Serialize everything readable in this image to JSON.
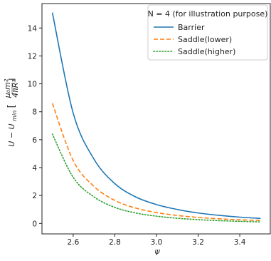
{
  "chart_data": {
    "type": "line",
    "xlabel": "ψ",
    "ylabel_main": "U − U",
    "ylabel_sub": "min",
    "ylabel_bracket_num": "μ₀m²",
    "ylabel_bracket_den": "4πR³",
    "xlim": [
      2.45,
      3.55
    ],
    "ylim": [
      -0.75,
      15.75
    ],
    "xticks": [
      "2.6",
      "2.8",
      "3.0",
      "3.2",
      "3.4"
    ],
    "yticks": [
      "0",
      "2",
      "4",
      "6",
      "8",
      "10",
      "12",
      "14"
    ],
    "grid": false,
    "legend": {
      "placement": "top-right",
      "title": "N = 4 (for illustration purpose)"
    },
    "x": [
      2.5,
      2.6,
      2.7,
      2.8,
      2.9,
      3.0,
      3.1,
      3.2,
      3.3,
      3.4,
      3.5
    ],
    "series": [
      {
        "name": "Barrier",
        "color": "#1f77b4",
        "style": "solid",
        "values": [
          15.1,
          7.9,
          4.6,
          2.85,
          1.9,
          1.35,
          1.0,
          0.75,
          0.58,
          0.45,
          0.36
        ]
      },
      {
        "name": "Saddle(lower)",
        "color": "#ff7f0e",
        "style": "dashed",
        "values": [
          8.6,
          4.5,
          2.65,
          1.65,
          1.1,
          0.78,
          0.57,
          0.43,
          0.33,
          0.26,
          0.21
        ]
      },
      {
        "name": "Saddle(higher)",
        "color": "#2ca02c",
        "style": "dotted",
        "values": [
          6.4,
          3.3,
          1.9,
          1.15,
          0.75,
          0.52,
          0.37,
          0.27,
          0.2,
          0.15,
          0.11
        ]
      }
    ]
  }
}
